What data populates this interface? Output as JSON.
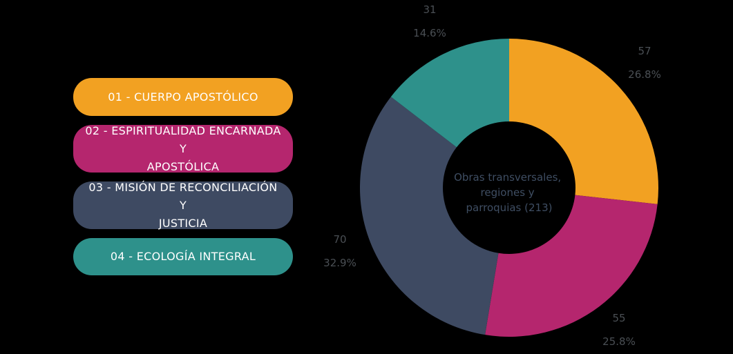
{
  "chart_data": {
    "type": "pie",
    "center_label": [
      "Obras transversales,",
      "regiones  y",
      "parroquias (213)"
    ],
    "categories": [
      "01 - CUERPO APOSTÓLICO",
      "02 - ESPIRITUALIDAD ENCARNADA Y APOSTÓLICA",
      "03 - MISIÓN DE RECONCILIACIÓN Y JUSTICIA",
      "04 - ECOLOGÍA INTEGRAL"
    ],
    "legend_lines": [
      [
        "01 - CUERPO APOSTÓLICO"
      ],
      [
        "02 - ESPIRITUALIDAD ENCARNADA Y",
        "APOSTÓLICA"
      ],
      [
        "03 - MISIÓN DE RECONCILIACIÓN Y",
        "JUSTICIA"
      ],
      [
        "04 - ECOLOGÍA INTEGRAL"
      ]
    ],
    "values": [
      57,
      55,
      70,
      31
    ],
    "percent_labels": [
      "26.8%",
      "25.8%",
      "32.9%",
      "14.6%"
    ],
    "colors": [
      "#F2A122",
      "#B5266E",
      "#3E4A62",
      "#2E918B"
    ],
    "legend_placement": "left"
  }
}
